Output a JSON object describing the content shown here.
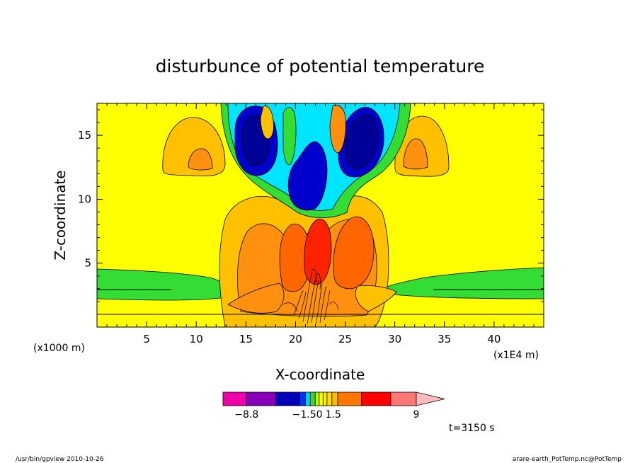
{
  "chart_data": {
    "type": "heatmap",
    "title": "disturbunce of potential temperature",
    "xlabel": "X-coordinate",
    "ylabel": "Z-coordinate",
    "x_unit_label": "(x1E4 m)",
    "y_unit_label": "(x1000 m)",
    "xlim": [
      0,
      45
    ],
    "ylim": [
      0,
      17.5
    ],
    "x_ticks": [
      5,
      10,
      15,
      20,
      25,
      30,
      35,
      40
    ],
    "y_ticks": [
      5,
      10,
      15
    ],
    "colorbar": {
      "labels": [
        {
          "text": "-8.8",
          "value": -8.8
        },
        {
          "text": "-1.50",
          "value": -1.5
        },
        {
          "text": "1.5",
          "value": 1.5
        },
        {
          "text": "9",
          "value": 9
        }
      ]
    },
    "time_label": "t=3150 s",
    "footer_left": "/usr/bin/gpview   2010-10-26",
    "footer_right": "arare-earth_PotTemp.nc@PotTemp"
  },
  "colors": {
    "background": "#ffff00",
    "weak_neg": "#33dd33",
    "mid_neg": "#00e5ff",
    "strong_neg": "#0000cc",
    "strong_neg_inner": "#000099",
    "weak_pos": "#ffc000",
    "mid_pos": "#ff9010",
    "strong_pos": "#ff6600",
    "extreme_pos": "#ff0000",
    "colorbar": [
      "#ee00aa",
      "#8800bb",
      "#0000bb",
      "#0033ff",
      "#00ccff",
      "#33dd33",
      "#bbff00",
      "#ffff00",
      "#ffee00",
      "#ffdd00",
      "#ffbb00",
      "#ff7700",
      "#ff0000",
      "#ff7777",
      "#ffbbbb"
    ]
  }
}
